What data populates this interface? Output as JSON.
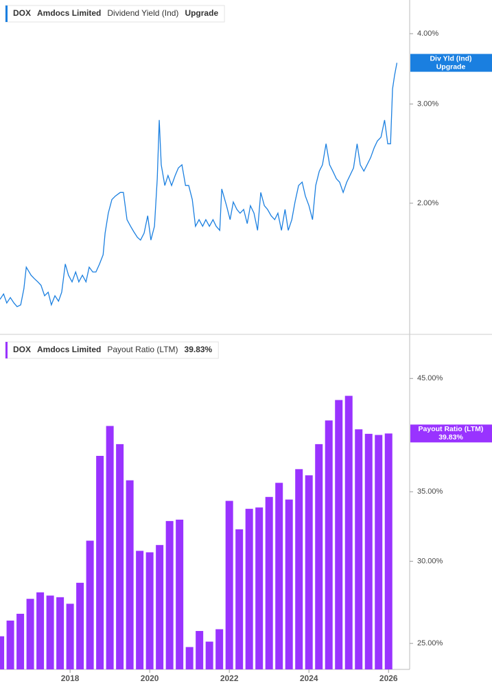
{
  "chart_data": [
    {
      "type": "line",
      "legend": {
        "ticker": "DOX",
        "company": "Amdocs Limited",
        "metric": "Dividend Yield (Ind)",
        "value_text": "Upgrade"
      },
      "tag": {
        "label": "Div Yld (Ind)",
        "value_text": "Upgrade"
      },
      "color": "#1a7fe0",
      "log_scale": true,
      "xlim": [
        2016.24,
        2026.53
      ],
      "ylim": [
        1.17,
        4.59
      ],
      "yticks": [
        {
          "value": 2,
          "label": "2.00%"
        },
        {
          "value": 3,
          "label": "3.00%"
        },
        {
          "value": 4,
          "label": "4.00%"
        }
      ],
      "x": [
        2016.24,
        2016.33,
        2016.41,
        2016.5,
        2016.59,
        2016.67,
        2016.76,
        2016.84,
        2016.9,
        2017.02,
        2017.1,
        2017.19,
        2017.27,
        2017.36,
        2017.45,
        2017.53,
        2017.62,
        2017.71,
        2017.79,
        2017.88,
        2017.96,
        2018.05,
        2018.14,
        2018.22,
        2018.31,
        2018.4,
        2018.48,
        2018.57,
        2018.65,
        2018.74,
        2018.83,
        2018.88,
        2018.96,
        2019.05,
        2019.14,
        2019.26,
        2019.34,
        2019.43,
        2019.52,
        2019.6,
        2019.69,
        2019.77,
        2019.86,
        2019.95,
        2020.03,
        2020.12,
        2020.19,
        2020.24,
        2020.29,
        2020.38,
        2020.46,
        2020.55,
        2020.64,
        2020.72,
        2020.81,
        2020.9,
        2020.98,
        2021.07,
        2021.15,
        2021.24,
        2021.33,
        2021.41,
        2021.5,
        2021.59,
        2021.67,
        2021.76,
        2021.81,
        2021.93,
        2022.02,
        2022.1,
        2022.19,
        2022.27,
        2022.36,
        2022.45,
        2022.53,
        2022.62,
        2022.71,
        2022.79,
        2022.88,
        2022.96,
        2023.05,
        2023.14,
        2023.22,
        2023.31,
        2023.4,
        2023.48,
        2023.57,
        2023.65,
        2023.74,
        2023.83,
        2023.91,
        2024.0,
        2024.09,
        2024.17,
        2024.26,
        2024.34,
        2024.43,
        2024.52,
        2024.6,
        2024.69,
        2024.77,
        2024.86,
        2024.95,
        2025.03,
        2025.12,
        2025.21,
        2025.29,
        2025.38,
        2025.46,
        2025.55,
        2025.64,
        2025.72,
        2025.81,
        2025.9,
        2025.98,
        2026.05,
        2026.1,
        2026.15,
        2026.21
      ],
      "values": [
        1.35,
        1.38,
        1.33,
        1.36,
        1.33,
        1.31,
        1.32,
        1.41,
        1.54,
        1.49,
        1.47,
        1.45,
        1.43,
        1.37,
        1.39,
        1.32,
        1.37,
        1.34,
        1.39,
        1.56,
        1.49,
        1.45,
        1.51,
        1.45,
        1.49,
        1.45,
        1.54,
        1.51,
        1.51,
        1.56,
        1.62,
        1.77,
        1.92,
        2.03,
        2.06,
        2.09,
        2.09,
        1.87,
        1.82,
        1.78,
        1.74,
        1.72,
        1.77,
        1.9,
        1.72,
        1.82,
        2.21,
        2.81,
        2.34,
        2.15,
        2.24,
        2.15,
        2.24,
        2.31,
        2.34,
        2.15,
        2.15,
        2.03,
        1.82,
        1.87,
        1.82,
        1.87,
        1.82,
        1.87,
        1.82,
        1.79,
        2.12,
        1.98,
        1.87,
        2.01,
        1.95,
        1.92,
        1.95,
        1.84,
        1.98,
        1.92,
        1.79,
        2.09,
        1.98,
        1.95,
        1.9,
        1.87,
        1.92,
        1.79,
        1.95,
        1.79,
        1.87,
        2.01,
        2.15,
        2.18,
        2.06,
        1.98,
        1.87,
        2.15,
        2.28,
        2.34,
        2.55,
        2.34,
        2.28,
        2.21,
        2.18,
        2.09,
        2.18,
        2.24,
        2.31,
        2.55,
        2.34,
        2.28,
        2.34,
        2.41,
        2.51,
        2.58,
        2.62,
        2.81,
        2.55,
        2.55,
        3.19,
        3.37,
        3.55
      ]
    },
    {
      "type": "bar",
      "legend": {
        "ticker": "DOX",
        "company": "Amdocs Limited",
        "metric": "Payout Ratio (LTM)",
        "value_text": "39.83%"
      },
      "tag": {
        "label": "Payout Ratio (LTM)",
        "value_text": "39.83%"
      },
      "color": "#9933ff",
      "log_scale": true,
      "xlim": [
        2016.24,
        2026.53
      ],
      "xticks": [
        2018,
        2020,
        2022,
        2024,
        2026
      ],
      "ylim": [
        23.6,
        49.4
      ],
      "yticks": [
        {
          "value": 25,
          "label": "25.00%"
        },
        {
          "value": 30,
          "label": "30.00%"
        },
        {
          "value": 35,
          "label": "35.00%"
        },
        {
          "value": 45,
          "label": "45.00%"
        }
      ],
      "x": [
        2016.25,
        2016.5,
        2016.75,
        2017,
        2017.25,
        2017.5,
        2017.75,
        2018,
        2018.25,
        2018.5,
        2018.75,
        2019,
        2019.25,
        2019.5,
        2019.75,
        2020,
        2020.25,
        2020.5,
        2020.75,
        2021,
        2021.25,
        2021.5,
        2021.75,
        2022,
        2022.25,
        2022.5,
        2022.75,
        2023,
        2023.25,
        2023.5,
        2023.75,
        2024,
        2024.25,
        2024.5,
        2024.75,
        2025,
        2025.25,
        2025.5,
        2025.75,
        2026
      ],
      "values": [
        25.4,
        26.3,
        26.7,
        27.6,
        28.0,
        27.8,
        27.7,
        27.3,
        28.6,
        31.4,
        37.9,
        40.5,
        38.9,
        35.9,
        30.7,
        30.6,
        31.1,
        32.8,
        32.9,
        24.8,
        25.7,
        25.1,
        25.8,
        34.3,
        32.2,
        33.7,
        33.8,
        34.6,
        35.7,
        34.4,
        36.8,
        36.3,
        38.9,
        41.0,
        42.9,
        43.3,
        40.2,
        39.8,
        39.7,
        39.83
      ]
    }
  ]
}
